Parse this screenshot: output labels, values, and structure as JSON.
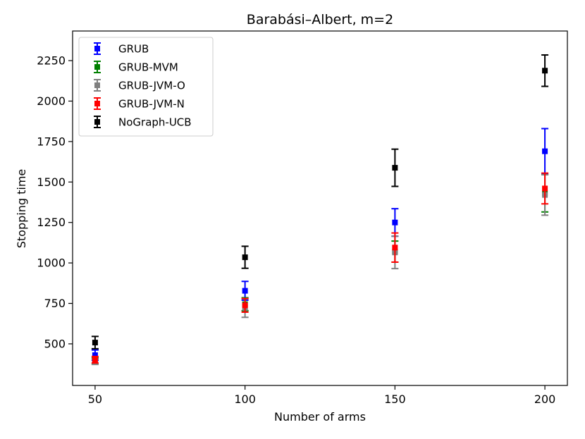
{
  "chart_data": {
    "type": "scatter",
    "title": "Barabási–Albert, m=2",
    "xlabel": "Number of arms",
    "ylabel": "Stopping time",
    "x": [
      50,
      100,
      150,
      200
    ],
    "x_ticks": [
      "50",
      "100",
      "150",
      "200"
    ],
    "y_ticks": [
      "500",
      "750",
      "1000",
      "1250",
      "1500",
      "1750",
      "2000",
      "2250"
    ],
    "xlim": [
      42.5,
      207.5
    ],
    "ylim": [
      243,
      2433
    ],
    "grid": false,
    "legend_position": "top-left",
    "series": [
      {
        "name": "GRUB",
        "color": "#0000ff",
        "values": [
          430,
          828,
          1250,
          1690
        ],
        "err": [
          32,
          58,
          85,
          140
        ]
      },
      {
        "name": "GRUB-MVM",
        "color": "#008000",
        "values": [
          395,
          745,
          1070,
          1430
        ],
        "err": [
          18,
          40,
          65,
          115
        ]
      },
      {
        "name": "GRUB-JVM-O",
        "color": "#808080",
        "values": [
          390,
          722,
          1065,
          1420
        ],
        "err": [
          17,
          58,
          100,
          125
        ]
      },
      {
        "name": "GRUB-JVM-N",
        "color": "#ff0000",
        "values": [
          402,
          738,
          1095,
          1460
        ],
        "err": [
          20,
          42,
          90,
          95
        ]
      },
      {
        "name": "NoGraph-UCB",
        "color": "#000000",
        "values": [
          508,
          1035,
          1588,
          2188
        ],
        "err": [
          38,
          68,
          115,
          97
        ]
      }
    ]
  }
}
